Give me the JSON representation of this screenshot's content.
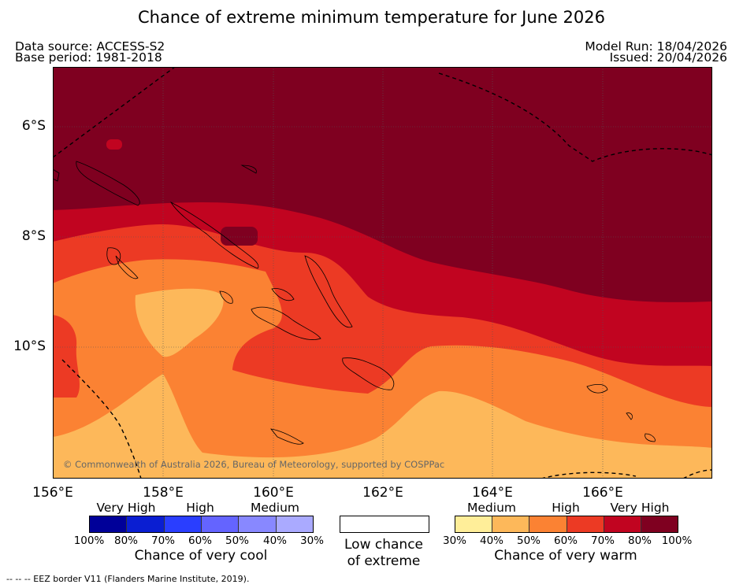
{
  "title": "Chance of extreme minimum temperature for June 2026",
  "meta": {
    "data_source": "Data source: ACCESS-S2",
    "base_period": "Base period: 1981-2018",
    "model_run": "Model Run: 18/04/2026",
    "issued": "Issued: 20/04/2026"
  },
  "map": {
    "copyright": "© Commonwealth of Australia 2026, Bureau of Meteorology, supported by COSPPac",
    "lat_labels": [
      "6°S",
      "8°S",
      "10°S"
    ],
    "lon_labels": [
      "156°E",
      "158°E",
      "160°E",
      "162°E",
      "164°E",
      "166°E"
    ]
  },
  "legend": {
    "cool": {
      "categories": [
        "Very High",
        "High",
        "Medium"
      ],
      "colors": [
        "#000099",
        "#0a1ed2",
        "#2a3eff",
        "#6464ff",
        "#8888ff",
        "#aaaaff"
      ],
      "ticks": [
        "100%",
        "80%",
        "70%",
        "60%",
        "50%",
        "40%",
        "30%"
      ],
      "label": "Chance of very cool"
    },
    "low": {
      "label_line1": "Low chance",
      "label_line2": "of extreme"
    },
    "warm": {
      "categories": [
        "Medium",
        "High",
        "Very High"
      ],
      "colors": [
        "#ffee99",
        "#fdb85a",
        "#fb8233",
        "#ec3a24",
        "#c10420",
        "#7f0020"
      ],
      "ticks": [
        "30%",
        "40%",
        "50%",
        "60%",
        "70%",
        "80%",
        "100%"
      ],
      "label": "Chance of very warm"
    }
  },
  "footnote": "--  --  -- EEZ border V11 (Flanders Marine Institute, 2019)."
}
